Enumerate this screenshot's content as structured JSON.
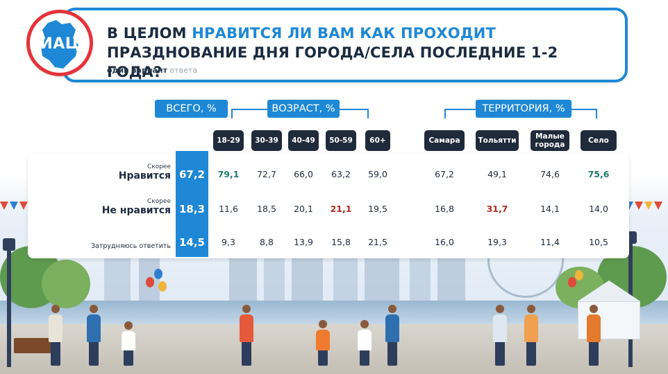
{
  "logo": {
    "text": "ИАЦ"
  },
  "header": {
    "title_part1": "В ЦЕЛОМ ",
    "title_highlight": "НРАВИТСЯ ЛИ ВАМ КАК ПРОХОДИТ",
    "title_part2": " ПРАЗДНОВАНИЕ ДНЯ ГОРОДА/СЕЛА ПОСЛЕДНИЕ 1-2 ГОДА?",
    "subtitle_bold": "один вариант",
    "subtitle_muted": " ответа"
  },
  "colors": {
    "accent": "#1e88d6",
    "dark": "#1f2a3a",
    "up": "#1f7a6a",
    "down": "#b22a24",
    "logo_ring": "#e5323a"
  },
  "chart_data": {
    "type": "table",
    "groups": [
      {
        "label": "ВСЕГО, %",
        "columns": [
          "total"
        ]
      },
      {
        "label": "ВОЗРАСТ, %",
        "columns": [
          "18-29",
          "30-39",
          "40-49",
          "50-59",
          "60+"
        ]
      },
      {
        "label": "ТЕРРИТОРИЯ, %",
        "columns": [
          "Самара",
          "Тольятти",
          "Малые города",
          "Село"
        ]
      }
    ],
    "column_headers": [
      "18-29",
      "30-39",
      "40-49",
      "50-59",
      "60+",
      "Самара",
      "Тольятти",
      "Малые города",
      "Село"
    ],
    "column_header_lines": [
      [
        "18-29"
      ],
      [
        "30-39"
      ],
      [
        "40-49"
      ],
      [
        "50-59"
      ],
      [
        "60+"
      ],
      [
        "Самара"
      ],
      [
        "Тольятти"
      ],
      [
        "Малые",
        "города"
      ],
      [
        "Село"
      ]
    ],
    "rows": [
      {
        "label_small": "Скорее",
        "label_big": "Нравится",
        "label_plain": "",
        "total": "67,2",
        "values": [
          "79,1",
          "72,7",
          "66,0",
          "63,2",
          "59,0",
          "67,2",
          "49,1",
          "74,6",
          "75,6"
        ],
        "highlight": [
          "up",
          "",
          "",
          "",
          "",
          "",
          "",
          "",
          "up"
        ]
      },
      {
        "label_small": "Скорее",
        "label_big": "Не нравится",
        "label_plain": "",
        "total": "18,3",
        "values": [
          "11,6",
          "18,5",
          "20,1",
          "21,1",
          "19,5",
          "16,8",
          "31,7",
          "14,1",
          "14,0"
        ],
        "highlight": [
          "",
          "",
          "",
          "down",
          "",
          "",
          "down",
          "",
          ""
        ]
      },
      {
        "label_small": "",
        "label_big": "",
        "label_plain": "Затрудняюсь ответить",
        "total": "14,5",
        "values": [
          "9,3",
          "8,8",
          "13,9",
          "15,8",
          "21,5",
          "16,0",
          "19,3",
          "11,4",
          "10,5"
        ],
        "highlight": [
          "",
          "",
          "",
          "",
          "",
          "",
          "",
          "",
          ""
        ]
      }
    ]
  }
}
